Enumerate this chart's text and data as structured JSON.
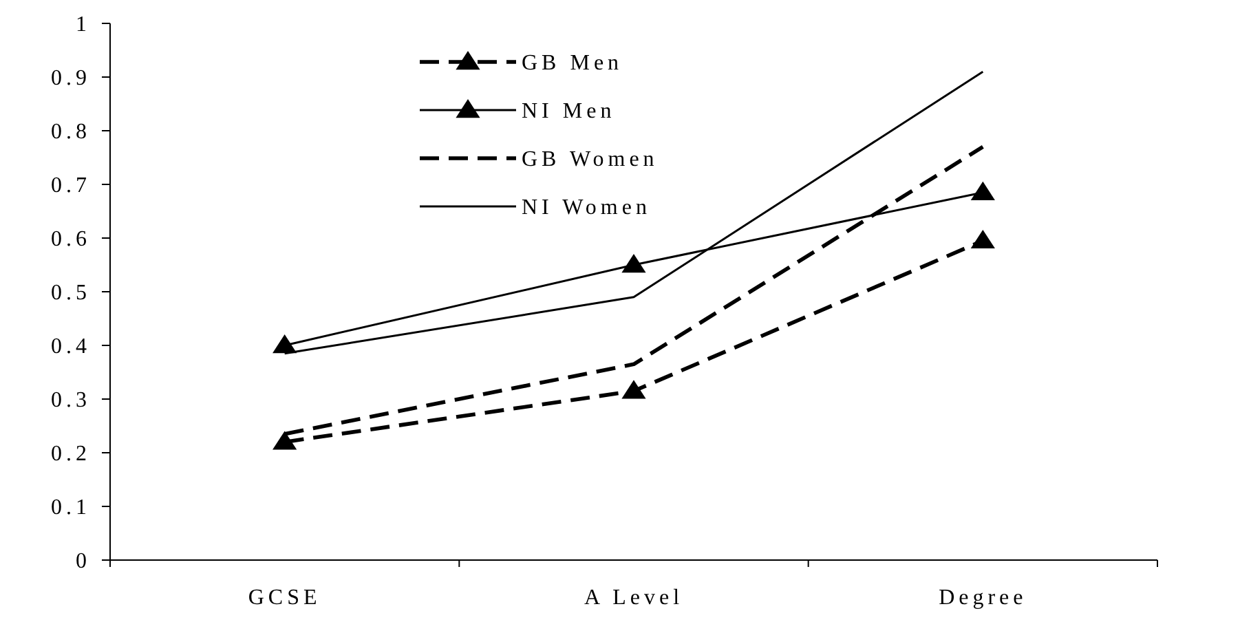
{
  "chart_data": {
    "type": "line",
    "categories": [
      "GCSE",
      "A Level",
      "Degree"
    ],
    "series": [
      {
        "name": "GB Men",
        "color": "#000000",
        "values": [
          0.22,
          0.315,
          0.595
        ],
        "line_style": "dashed",
        "marker": "triangle"
      },
      {
        "name": "NI Men",
        "color": "#000000",
        "values": [
          0.4,
          0.55,
          0.685
        ],
        "line_style": "solid",
        "marker": "triangle"
      },
      {
        "name": "GB Women",
        "color": "#000000",
        "values": [
          0.235,
          0.365,
          0.77
        ],
        "line_style": "dashed",
        "marker": "none"
      },
      {
        "name": "NI Women",
        "color": "#000000",
        "values": [
          0.385,
          0.49,
          0.91
        ],
        "line_style": "solid",
        "marker": "none"
      }
    ],
    "ylim": [
      0,
      1
    ],
    "yticks": [
      0,
      {
        "value": 0.1,
        "label": "0.1"
      },
      {
        "value": 0.2,
        "label": "0.2"
      },
      {
        "value": 0.3,
        "label": "0.3"
      },
      {
        "value": 0.4,
        "label": "0.4"
      },
      {
        "value": 0.5,
        "label": "0.5"
      },
      {
        "value": 0.6,
        "label": "0.6"
      },
      {
        "value": 0.7,
        "label": "0.7"
      },
      {
        "value": 0.8,
        "label": "0.8"
      },
      {
        "value": 0.9,
        "label": "0.9"
      },
      1
    ],
    "grid": false,
    "legend": "top left"
  }
}
